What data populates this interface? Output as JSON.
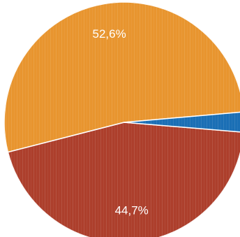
{
  "chart_data": {
    "type": "pie",
    "slices": [
      {
        "label": "52,6%",
        "value": 52.6,
        "color": "#e8952f"
      },
      {
        "label": "44,7%",
        "value": 44.7,
        "color": "#ad3f2c"
      },
      {
        "label": "",
        "value": 2.7,
        "color": "#1b6fb5"
      }
    ],
    "title": "",
    "legend": "none"
  }
}
